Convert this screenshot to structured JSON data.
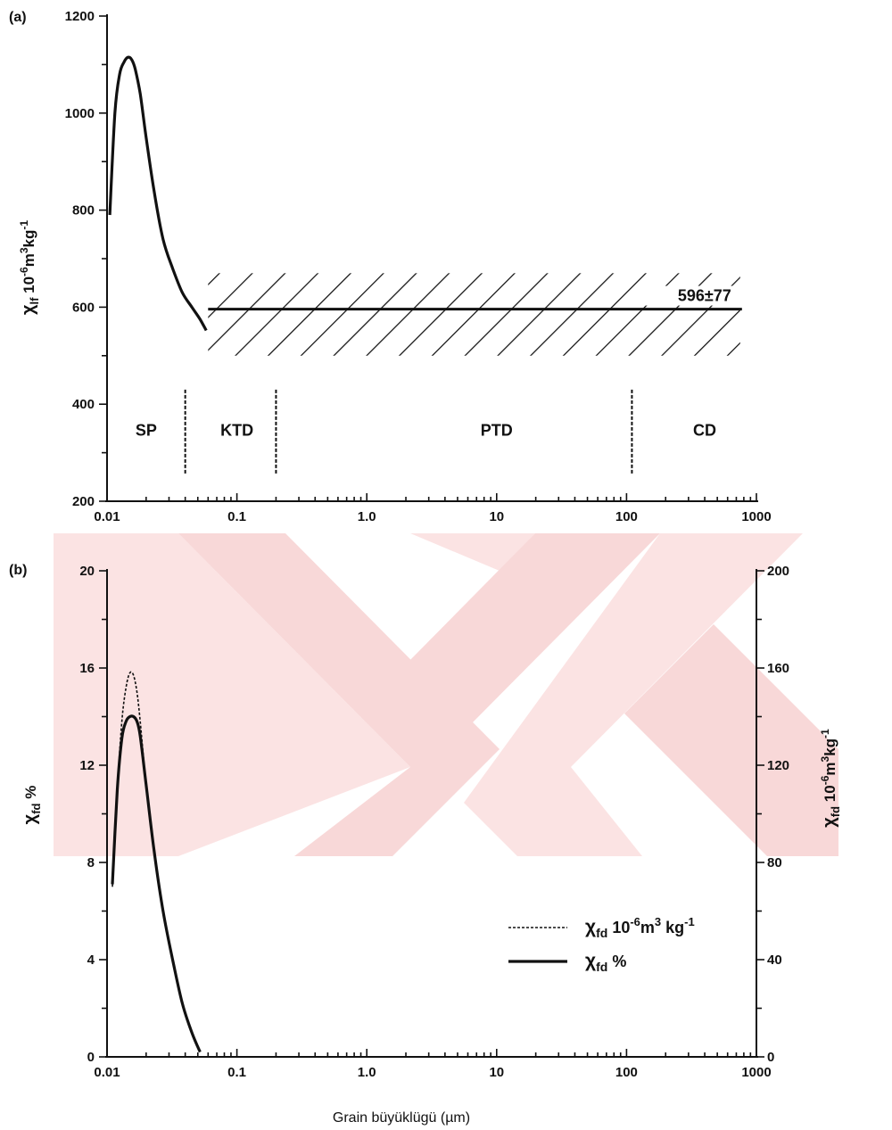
{
  "chart_data": [
    {
      "panel": "(a)",
      "type": "line",
      "x_scale": "log",
      "xlim": [
        0.01,
        1000
      ],
      "ylim": [
        200,
        1200
      ],
      "x_ticks": [
        "0.01",
        "0.1",
        "1.0",
        "10",
        "100",
        "1000"
      ],
      "y_ticks": [
        "200",
        "400",
        "600",
        "800",
        "1000",
        "1200"
      ],
      "ylabel_main": "χ",
      "ylabel_sub": "lf",
      "ylabel_rest": " 10",
      "ylabel_sup1": "-6",
      "ylabel_rest2": "m",
      "ylabel_sup2": "3",
      "ylabel_rest3": "kg",
      "ylabel_sup3": "-1",
      "series": [
        {
          "x": [
            0.0105,
            0.0115,
            0.0125,
            0.0135,
            0.0145,
            0.0155,
            0.0165,
            0.018,
            0.02,
            0.023,
            0.027,
            0.032,
            0.038,
            0.045,
            0.052,
            0.058
          ],
          "y": [
            790,
            1000,
            1080,
            1105,
            1115,
            1110,
            1090,
            1040,
            950,
            840,
            740,
            680,
            630,
            600,
            575,
            552
          ]
        }
      ],
      "band": {
        "x": [
          0.06,
          750
        ],
        "center": 596,
        "low": 500,
        "high": 670,
        "label": "596±77"
      },
      "regions": [
        {
          "label": "SP",
          "x": 0.02
        },
        {
          "label": "KTD",
          "x": 0.1
        },
        {
          "label": "PTD",
          "x": 10
        },
        {
          "label": "CD",
          "x": 400
        }
      ],
      "dividers_x": [
        0.04,
        0.2,
        110
      ],
      "dividers_y": [
        200,
        430
      ]
    },
    {
      "panel": "(b)",
      "type": "line",
      "x_scale": "log",
      "xlim": [
        0.01,
        1000
      ],
      "ylim_left": [
        0,
        20
      ],
      "ylim_right": [
        0,
        200
      ],
      "x_ticks": [
        "0.01",
        "0.1",
        "1.0",
        "10",
        "100",
        "1000"
      ],
      "y_ticks_left": [
        "0",
        "4",
        "8",
        "12",
        "16",
        "20"
      ],
      "y_ticks_right": [
        "0",
        "40",
        "80",
        "120",
        "160",
        "200"
      ],
      "ylabel_left_main": "χ",
      "ylabel_left_sub": "fd",
      "ylabel_left_rest": " %",
      "ylabel_right_main": "χ",
      "ylabel_right_sub": "fd",
      "ylabel_right_rest": " 10",
      "ylabel_right_sup1": "-6",
      "ylabel_right_rest2": "m",
      "ylabel_right_sup2": "3",
      "ylabel_right_rest3": "kg",
      "ylabel_right_sup3": "-1",
      "xlabel": "Grain büyüklügü (µm)",
      "series": [
        {
          "name": "χfd 10-6m3 kg-1",
          "axis": "right",
          "style": "dashed",
          "x": [
            0.011,
            0.012,
            0.013,
            0.014,
            0.015,
            0.016,
            0.017,
            0.018,
            0.02,
            0.023,
            0.027,
            0.032,
            0.038,
            0.045,
            0.052
          ],
          "y": [
            70,
            110,
            138,
            152,
            158,
            157,
            150,
            138,
            112,
            85,
            60,
            40,
            22,
            10,
            2
          ]
        },
        {
          "name": "χfd %",
          "axis": "left",
          "style": "solid",
          "x": [
            0.011,
            0.012,
            0.013,
            0.014,
            0.015,
            0.016,
            0.017,
            0.018,
            0.02,
            0.023,
            0.027,
            0.032,
            0.038,
            0.045,
            0.052
          ],
          "y": [
            7.1,
            11.0,
            13.1,
            13.8,
            14.0,
            14.0,
            13.8,
            13.2,
            11.2,
            8.5,
            6.0,
            4.0,
            2.2,
            1.0,
            0.2
          ]
        }
      ],
      "legend": [
        {
          "main": "χ",
          "sub": "fd",
          "rest": " 10",
          "sup1": "-6",
          "rest2": "m",
          "sup2": "3",
          "rest3": " kg",
          "sup3": "-1",
          "style": "dashed"
        },
        {
          "main": "χ",
          "sub": "fd",
          "rest": " %",
          "style": "solid"
        }
      ]
    }
  ],
  "colors": {
    "ink": "#111111",
    "watermark": "#f7d6d6",
    "background": "#ffffff"
  }
}
